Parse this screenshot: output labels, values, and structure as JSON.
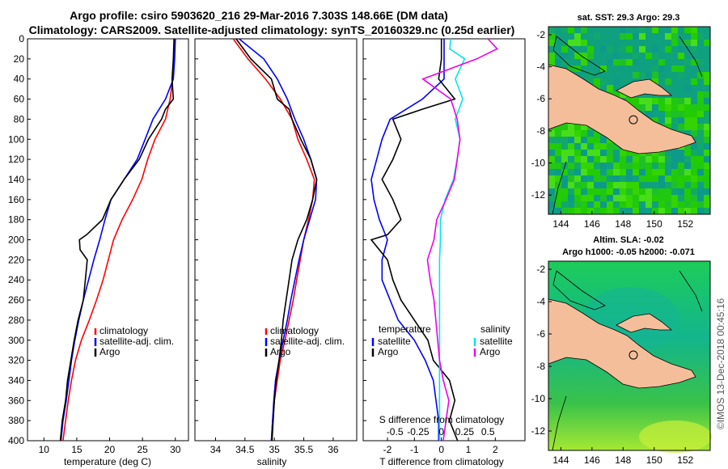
{
  "header": {
    "line1": "Argo profile: csiro 5903620_216 29-Mar-2016 7.303S 148.66E (DM data)",
    "line2": "Climatology: CARS2009. Satellite-adjusted climatology: synTS_20160329.nc (0.25d earlier)"
  },
  "colors": {
    "climatology": "#ff0000",
    "satellite": "#0000ff",
    "argo": "#000000",
    "sal_satellite": "#00e5ee",
    "sal_argo": "#ee00ee",
    "land": "#f5be9a"
  },
  "watermark": "©IMOS 13-Dec-2018 00:45:16",
  "depth_ticks": [
    "0",
    "20",
    "40",
    "60",
    "80",
    "100",
    "120",
    "140",
    "160",
    "180",
    "200",
    "220",
    "240",
    "260",
    "280",
    "300",
    "320",
    "340",
    "360",
    "380",
    "400"
  ],
  "chart_data": [
    {
      "type": "line",
      "id": "temperature",
      "xlabel": "temperature (deg C)",
      "ylabel": "",
      "xlim": [
        7.5,
        32
      ],
      "ylim": [
        400,
        0
      ],
      "xticks": [
        10,
        15,
        20,
        25,
        30
      ],
      "legend": [
        "climatology",
        "satellite-adj. clim.",
        "Argo"
      ],
      "series": [
        {
          "name": "climatology",
          "depth": [
            0,
            20,
            40,
            60,
            80,
            100,
            120,
            140,
            160,
            180,
            200,
            220,
            240,
            260,
            280,
            300,
            320,
            340,
            360,
            380,
            400
          ],
          "values": [
            29.9,
            29.8,
            29.6,
            29.2,
            28.5,
            26.9,
            25.8,
            24.9,
            23.5,
            21.9,
            20.6,
            19.8,
            19.0,
            18.0,
            16.9,
            15.7,
            14.8,
            14.2,
            13.7,
            13.3,
            12.9
          ]
        },
        {
          "name": "satellite-adj. clim.",
          "depth": [
            0,
            20,
            40,
            60,
            80,
            100,
            120,
            140,
            160,
            180,
            200,
            220,
            240,
            260,
            280,
            300,
            320,
            340,
            360,
            380,
            400
          ],
          "values": [
            30.0,
            29.9,
            29.7,
            28.5,
            26.6,
            25.4,
            24.2,
            22.2,
            20.2,
            19.3,
            18.5,
            17.6,
            16.8,
            16.0,
            15.3,
            14.7,
            14.2,
            13.8,
            13.4,
            12.9,
            12.6
          ]
        },
        {
          "name": "Argo",
          "depth": [
            0,
            20,
            40,
            60,
            70,
            80,
            100,
            120,
            140,
            160,
            180,
            195,
            200,
            210,
            220,
            240,
            260,
            280,
            300,
            320,
            340,
            360,
            380,
            400
          ],
          "values": [
            29.8,
            29.7,
            29.5,
            29.7,
            28.5,
            27.9,
            25.9,
            24.5,
            22.2,
            20.2,
            18.9,
            16.5,
            15.4,
            15.5,
            16.6,
            16.3,
            16.0,
            15.2,
            14.6,
            14.1,
            13.6,
            13.3,
            12.8,
            12.5
          ]
        }
      ]
    },
    {
      "type": "line",
      "id": "salinity",
      "xlabel": "salinity",
      "ylabel": "",
      "xlim": [
        33.65,
        36.4
      ],
      "ylim": [
        400,
        0
      ],
      "xticks": [
        34,
        34.5,
        35,
        35.5,
        36
      ],
      "xtick_labels": [
        "34",
        "34.5",
        "35",
        "35.5",
        "36"
      ],
      "legend": [
        "climatology",
        "satellite-adj. clim.",
        "Argo"
      ],
      "series": [
        {
          "name": "climatology",
          "depth": [
            0,
            20,
            40,
            60,
            80,
            100,
            120,
            140,
            160,
            180,
            200,
            220,
            240,
            260,
            280,
            300,
            320,
            340,
            360,
            380,
            400
          ],
          "values": [
            34.3,
            34.55,
            34.85,
            35.1,
            35.3,
            35.4,
            35.55,
            35.68,
            35.65,
            35.58,
            35.5,
            35.44,
            35.38,
            35.32,
            35.25,
            35.18,
            35.1,
            35.05,
            35.0,
            34.97,
            34.95
          ]
        },
        {
          "name": "satellite-adj. clim.",
          "depth": [
            0,
            20,
            40,
            60,
            80,
            100,
            120,
            140,
            160,
            180,
            200,
            220,
            240,
            260,
            280,
            300,
            320,
            340,
            360,
            380,
            400
          ],
          "values": [
            34.4,
            34.82,
            35.05,
            35.22,
            35.35,
            35.5,
            35.62,
            35.72,
            35.7,
            35.6,
            35.5,
            35.42,
            35.35,
            35.28,
            35.22,
            35.15,
            35.08,
            35.02,
            34.99,
            34.97,
            34.95
          ]
        },
        {
          "name": "Argo",
          "depth": [
            0,
            20,
            40,
            50,
            60,
            70,
            80,
            100,
            120,
            140,
            160,
            180,
            200,
            220,
            240,
            260,
            280,
            300,
            320,
            340,
            360,
            380,
            400
          ],
          "values": [
            34.35,
            34.6,
            34.95,
            35.0,
            35.05,
            35.25,
            35.3,
            35.45,
            35.62,
            35.72,
            35.65,
            35.55,
            35.4,
            35.3,
            35.25,
            35.2,
            35.15,
            35.12,
            35.08,
            35.03,
            35.0,
            34.98,
            34.96
          ]
        }
      ]
    },
    {
      "type": "line",
      "id": "difference",
      "xlabel": "T difference from climatology",
      "xlabel_top": "S difference from climatology",
      "xlim": [
        -2.9,
        3.1
      ],
      "ylim": [
        400,
        0
      ],
      "xticks": [
        -2,
        -1,
        0,
        1,
        2
      ],
      "xtick_labels": [
        "-2",
        "-1",
        "0",
        "1",
        "2"
      ],
      "s_xticks": [
        -0.5,
        -0.25,
        0,
        0.25,
        0.5
      ],
      "s_xtick_labels": [
        "-0.5",
        "-0.25",
        "0",
        "0.25",
        "0.5"
      ],
      "legend_titles": [
        "temperature",
        "salinity"
      ],
      "legend": [
        "satellite",
        "Argo",
        "satellite",
        "Argo"
      ],
      "series": [
        {
          "name": "T satellite",
          "depth": [
            0,
            20,
            40,
            60,
            80,
            100,
            120,
            140,
            160,
            180,
            200,
            220,
            240,
            260,
            280,
            300,
            320,
            340,
            360,
            380,
            400
          ],
          "values": [
            0.1,
            0.1,
            0.1,
            -0.7,
            -1.9,
            -2.2,
            -2.4,
            -2.6,
            -2.5,
            -2.3,
            -2.0,
            -2.2,
            -2.2,
            -1.9,
            -1.6,
            -1.0,
            -0.6,
            -0.3,
            -0.2,
            -0.1,
            -0.1
          ]
        },
        {
          "name": "T Argo",
          "depth": [
            0,
            20,
            40,
            60,
            70,
            80,
            100,
            120,
            140,
            160,
            180,
            195,
            200,
            220,
            240,
            260,
            280,
            300,
            320,
            340,
            360,
            380,
            400
          ],
          "values": [
            0.0,
            0.0,
            -0.1,
            0.5,
            -0.7,
            -1.8,
            -1.5,
            -1.8,
            -2.2,
            -1.8,
            -1.5,
            -2.0,
            -2.6,
            -2.0,
            -1.8,
            -1.5,
            -1.0,
            -0.5,
            -0.3,
            0.3,
            0.5,
            0.3,
            0.6
          ]
        },
        {
          "name": "S satellite",
          "depth": [
            0,
            10,
            20,
            40,
            60,
            80,
            100,
            120,
            140,
            160,
            180,
            200,
            220,
            240,
            260,
            280,
            300,
            320,
            340,
            360,
            380,
            400
          ],
          "values": [
            0.1,
            0.09,
            0.25,
            0.15,
            0.23,
            0.15,
            0.2,
            0.17,
            0.13,
            0.04,
            -0.01,
            -0.01,
            -0.02,
            -0.02,
            -0.02,
            -0.02,
            -0.02,
            -0.02,
            -0.02,
            -0.02,
            -0.02,
            -0.02
          ]
        },
        {
          "name": "S Argo",
          "depth": [
            0,
            10,
            20,
            40,
            60,
            80,
            100,
            120,
            140,
            160,
            180,
            200,
            220,
            240,
            260,
            280,
            300,
            320,
            340,
            360,
            380,
            400
          ],
          "values": [
            0.5,
            0.6,
            0.38,
            -0.2,
            0.1,
            0.17,
            0.2,
            0.17,
            0.14,
            0.05,
            -0.05,
            -0.08,
            -0.15,
            -0.12,
            -0.08,
            -0.06,
            -0.04,
            -0.02,
            0.02,
            0.08,
            0.05,
            0.02
          ]
        }
      ]
    },
    {
      "type": "heatmap",
      "id": "sst_map",
      "title": "sat. SST: 29.3 Argo: 29.3",
      "xticks": [
        144,
        146,
        148,
        150,
        152
      ],
      "yticks": [
        -2,
        -4,
        -6,
        -8,
        -10,
        -12
      ],
      "xlim": [
        143.2,
        153.6
      ],
      "ylim": [
        -13.2,
        -1.5
      ],
      "argo_position": {
        "lon": 148.66,
        "lat": -7.303
      }
    },
    {
      "type": "heatmap",
      "id": "sla_map",
      "title": "Altim. SLA: -0.02",
      "subtitle": "Argo h1000: -0.05 h2000: -0.071",
      "xticks": [
        144,
        146,
        148,
        150,
        152
      ],
      "yticks": [
        -2,
        -4,
        -6,
        -8,
        -10,
        -12
      ],
      "xlim": [
        143.2,
        153.6
      ],
      "ylim": [
        -13.2,
        -1.5
      ],
      "argo_position": {
        "lon": 148.66,
        "lat": -7.303
      }
    }
  ]
}
